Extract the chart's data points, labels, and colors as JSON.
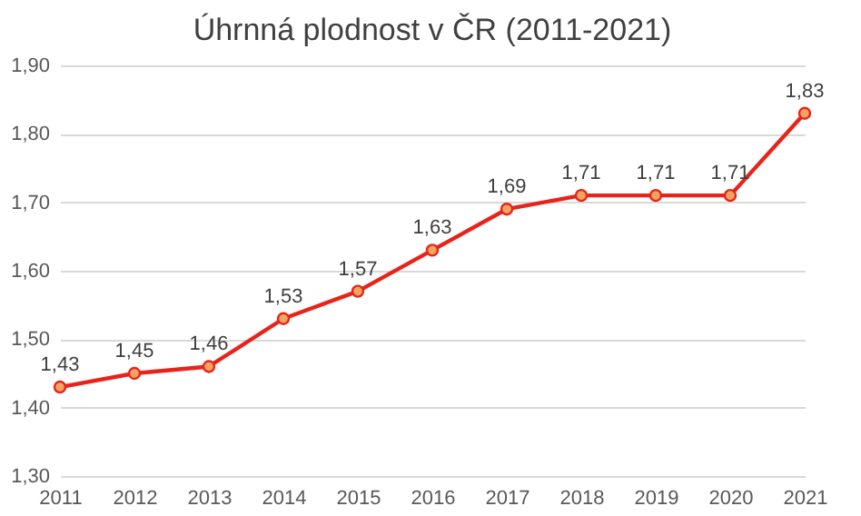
{
  "chart_data": {
    "type": "line",
    "title": "Úhrnná plodnost v ČR (2011-2021)",
    "categories": [
      "2011",
      "2012",
      "2013",
      "2014",
      "2015",
      "2016",
      "2017",
      "2018",
      "2019",
      "2020",
      "2021"
    ],
    "series": [
      {
        "color": "#e8231a",
        "values": [
          1.43,
          1.45,
          1.46,
          1.53,
          1.57,
          1.63,
          1.69,
          1.71,
          1.71,
          1.71,
          1.83
        ],
        "value_labels": [
          "1,43",
          "1,45",
          "1,46",
          "1,53",
          "1,57",
          "1,63",
          "1,69",
          "1,71",
          "1,71",
          "1,71",
          "1,83"
        ]
      }
    ],
    "ylim": [
      1.3,
      1.9
    ],
    "yticks": [
      {
        "value": 1.3,
        "label": "1,30"
      },
      {
        "value": 1.4,
        "label": "1,40"
      },
      {
        "value": 1.5,
        "label": "1,50"
      },
      {
        "value": 1.6,
        "label": "1,60"
      },
      {
        "value": 1.7,
        "label": "1,70"
      },
      {
        "value": 1.8,
        "label": "1,80"
      },
      {
        "value": 1.9,
        "label": "1,90"
      }
    ],
    "grid": "y",
    "marker": "circle",
    "line_style": "solid"
  }
}
